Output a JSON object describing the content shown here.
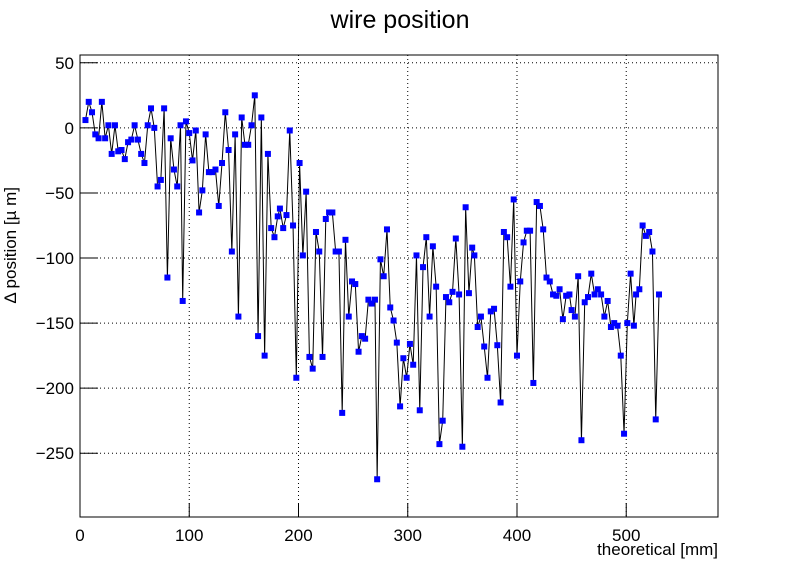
{
  "chart_data": {
    "type": "line",
    "title": "wire position",
    "xlabel": "theoretical [mm]",
    "ylabel": "Δ position [µ m]",
    "x": [
      5,
      8,
      11,
      14,
      17,
      20,
      23,
      26,
      29,
      32,
      35,
      38,
      41,
      44,
      47,
      50,
      53,
      56,
      59,
      62,
      65,
      68,
      71,
      74,
      77,
      80,
      83,
      86,
      89,
      92,
      94,
      97,
      100,
      103,
      106,
      109,
      112,
      115,
      118,
      121,
      124,
      127,
      130,
      133,
      136,
      139,
      142,
      145,
      148,
      151,
      154,
      157,
      160,
      163,
      166,
      169,
      172,
      175,
      178,
      181,
      183,
      186,
      189,
      192,
      195,
      198,
      201,
      204,
      207,
      210,
      213,
      216,
      219,
      222,
      225,
      228,
      231,
      234,
      237,
      240,
      243,
      246,
      249,
      252,
      255,
      258,
      261,
      264,
      267,
      270,
      272,
      275,
      278,
      281,
      284,
      287,
      290,
      293,
      296,
      299,
      302,
      305,
      308,
      311,
      314,
      317,
      320,
      323,
      326,
      329,
      332,
      335,
      338,
      341,
      344,
      347,
      350,
      353,
      356,
      359,
      361,
      364,
      367,
      370,
      373,
      376,
      379,
      382,
      385,
      388,
      391,
      394,
      397,
      400,
      403,
      406,
      409,
      412,
      415,
      418,
      421,
      424,
      427,
      430,
      433,
      436,
      439,
      442,
      445,
      448,
      450,
      453,
      456,
      459,
      462,
      465,
      468,
      471,
      474,
      477,
      480,
      483,
      486,
      489,
      492,
      495,
      498,
      501,
      504,
      507,
      509,
      512,
      515,
      518,
      521,
      524,
      527,
      530
    ],
    "series": [
      {
        "name": "wire position",
        "color": "#0000ff",
        "line_color": "#000000",
        "values": [
          6,
          20,
          12,
          -5,
          -8,
          20,
          -8,
          2,
          -20,
          2,
          -18,
          -17,
          -24,
          -11,
          -9,
          2,
          -9,
          -20,
          -27,
          2,
          15,
          0,
          -45,
          -40,
          15,
          -115,
          -8,
          -32,
          -45,
          2,
          -133,
          5,
          -4,
          -25,
          -2,
          -65,
          -48,
          -5,
          -34,
          -34,
          -32,
          -60,
          -27,
          12,
          -17,
          -95,
          -5,
          -145,
          8,
          -13,
          -13,
          2,
          25,
          -160,
          8,
          -175,
          -20,
          -77,
          -84,
          -68,
          -62,
          -77,
          -67,
          -2,
          -75,
          -192,
          -27,
          -98,
          -49,
          -176,
          -185,
          -80,
          -95,
          -176,
          -70,
          -65,
          -65,
          -95,
          -95,
          -219,
          -86,
          -145,
          -118,
          -120,
          -172,
          -160,
          -162,
          -132,
          -135,
          -132,
          -270,
          -101,
          -114,
          -78,
          -138,
          -148,
          -165,
          -214,
          -177,
          -192,
          -166,
          -182,
          -98,
          -217,
          -107,
          -84,
          -145,
          -91,
          -122,
          -243,
          -225,
          -130,
          -134,
          -126,
          -85,
          -128,
          -245,
          -61,
          -127,
          -92,
          -98,
          -153,
          -145,
          -168,
          -192,
          -141,
          -139,
          -167,
          -211,
          -80,
          -84,
          -122,
          -55,
          -175,
          -118,
          -88,
          -79,
          -79,
          -196,
          -57,
          -60,
          -78,
          -115,
          -118,
          -128,
          -129,
          -124,
          -147,
          -129,
          -128,
          -140,
          -145,
          -114,
          -240,
          -134,
          -130,
          -112,
          -128,
          -124,
          -128,
          -145,
          -133,
          -153,
          -150,
          -152,
          -175,
          -235,
          -150,
          -112,
          -152,
          -128,
          -124,
          -75,
          -83,
          -80,
          -95,
          -224,
          -128
        ]
      }
    ],
    "xlim": [
      0,
      584
    ],
    "ylim": [
      -299,
      56
    ],
    "xticks": [
      0,
      100,
      200,
      300,
      400,
      500
    ],
    "yticks": [
      {
        "value": -250,
        "label": "−250"
      },
      {
        "value": -200,
        "label": "−200"
      },
      {
        "value": -150,
        "label": "−150"
      },
      {
        "value": -100,
        "label": "−100"
      },
      {
        "value": -50,
        "label": "−50"
      },
      0,
      50
    ],
    "grid": true
  }
}
